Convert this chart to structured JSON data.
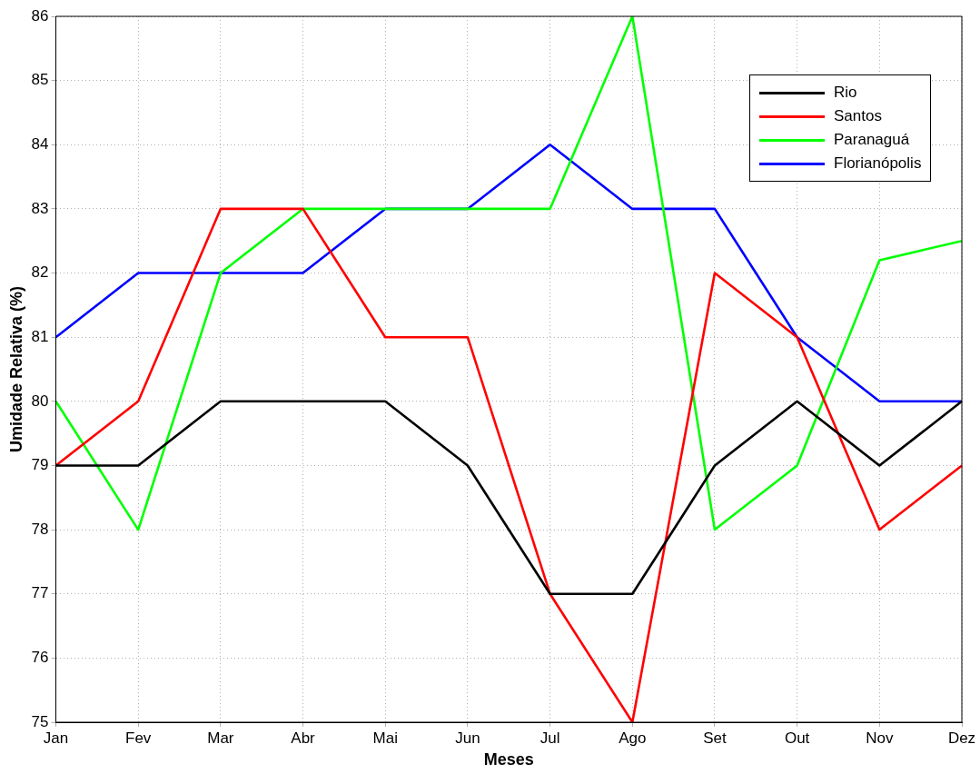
{
  "chart_data": {
    "type": "line",
    "xlabel": "Meses",
    "ylabel": "Umidade Relativa (%)",
    "categories": [
      "Jan",
      "Fev",
      "Mar",
      "Abr",
      "Mai",
      "Jun",
      "Jul",
      "Ago",
      "Set",
      "Out",
      "Nov",
      "Dez"
    ],
    "series": [
      {
        "name": "Rio",
        "color": "#000000",
        "values": [
          79,
          79,
          80,
          80,
          80,
          79,
          77,
          77,
          79,
          80,
          79,
          80
        ]
      },
      {
        "name": "Santos",
        "color": "#ff0000",
        "values": [
          79,
          80,
          83,
          83,
          81,
          81,
          77,
          75,
          82,
          81,
          78,
          79
        ]
      },
      {
        "name": "Paranaguá",
        "color": "#00ff00",
        "values": [
          80,
          78,
          82,
          83,
          83,
          83,
          83,
          86,
          78,
          79,
          82.2,
          82.5
        ]
      },
      {
        "name": "Florianópolis",
        "color": "#0000ff",
        "values": [
          81,
          82,
          82,
          82,
          83,
          83,
          84,
          83,
          83,
          81,
          80,
          80
        ]
      }
    ],
    "ylim": [
      75,
      86
    ],
    "yticks": [
      75,
      76,
      77,
      78,
      79,
      80,
      81,
      82,
      83,
      84,
      85,
      86
    ],
    "grid": true,
    "legend": "top right",
    "marker": "none",
    "line_style": "solid"
  }
}
